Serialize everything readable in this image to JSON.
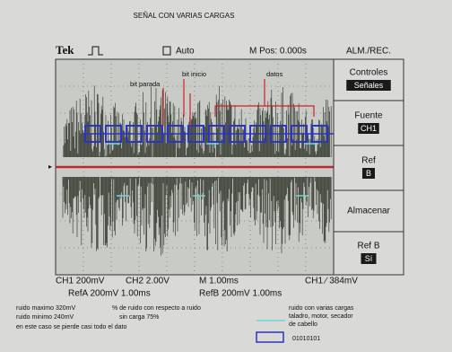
{
  "title": "SEÑAL CON VARIAS CARGAS",
  "top_bar": {
    "brand": "Tek",
    "trigger_mode": "Auto",
    "position": "M Pos: 0.000s",
    "menu_title": "ALM./REC."
  },
  "annotations": [
    "bit parada",
    "bit inicio",
    "datos"
  ],
  "menu": [
    {
      "label": "Controles",
      "value": "Señales"
    },
    {
      "label": "Fuente",
      "value": "CH1"
    },
    {
      "label": "Ref",
      "value": "B"
    },
    {
      "label": "Almacenar"
    },
    {
      "label": "Ref B",
      "value": "Sí"
    }
  ],
  "readouts": {
    "row1": [
      "CH1  200mV",
      "CH2  2.00V",
      "M 1.00ms",
      "CH1 ∕ 384mV"
    ],
    "row2": [
      "RefA 200mV 1.00ms",
      "RefB 200mV 1.00ms"
    ]
  },
  "notes": [
    "ruido maximo 320mV",
    "ruido minimo 240mV",
    "en este caso se pierde casi todo el dato",
    "% de ruido con respecto a ruido",
    "sin carga  75%"
  ],
  "legend": {
    "noise": [
      "ruido con varias cargas",
      "taladro, motor, secador",
      "de cabello"
    ],
    "bits": "01010101"
  }
}
